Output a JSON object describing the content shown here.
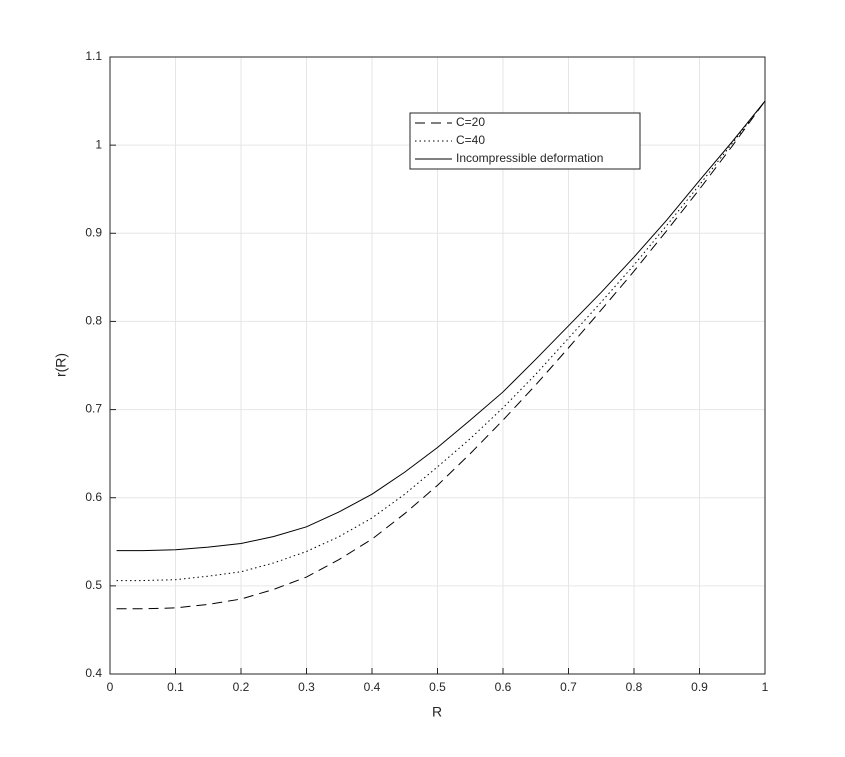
{
  "chart_data": {
    "type": "line",
    "xlabel": "R",
    "ylabel": "r(R)",
    "x": [
      0.01,
      0.05,
      0.1,
      0.15,
      0.2,
      0.25,
      0.3,
      0.35,
      0.4,
      0.45,
      0.5,
      0.55,
      0.6,
      0.65,
      0.7,
      0.75,
      0.8,
      0.85,
      0.9,
      0.95,
      1
    ],
    "series": [
      {
        "name": "C=20",
        "color": "#000000",
        "style": "dashed",
        "values": [
          0.474,
          0.474,
          0.475,
          0.479,
          0.485,
          0.496,
          0.51,
          0.53,
          0.553,
          0.582,
          0.614,
          0.65,
          0.688,
          0.728,
          0.77,
          0.813,
          0.857,
          0.903,
          0.95,
          0.999,
          1.05
        ]
      },
      {
        "name": "C=40",
        "color": "#000000",
        "style": "dotted",
        "values": [
          0.506,
          0.506,
          0.507,
          0.511,
          0.516,
          0.526,
          0.539,
          0.556,
          0.577,
          0.604,
          0.635,
          0.667,
          0.702,
          0.74,
          0.781,
          0.822,
          0.864,
          0.909,
          0.955,
          1.002,
          1.05
        ]
      },
      {
        "name": "Incompressible deformation",
        "color": "#000000",
        "style": "solid",
        "values": [
          0.54,
          0.54,
          0.541,
          0.544,
          0.548,
          0.556,
          0.567,
          0.584,
          0.604,
          0.629,
          0.657,
          0.688,
          0.72,
          0.757,
          0.795,
          0.833,
          0.873,
          0.915,
          0.96,
          1.004,
          1.05
        ]
      }
    ],
    "xlim": [
      0,
      1
    ],
    "xticks": [
      0,
      0.1,
      0.2,
      0.3,
      0.4,
      0.5,
      0.6,
      0.7,
      0.8,
      0.9,
      1
    ],
    "ylim": [
      0.4,
      1.1
    ],
    "yticks": [
      0.4,
      0.5,
      0.6,
      0.7,
      0.8,
      0.9,
      1,
      1.1
    ],
    "grid": true
  }
}
